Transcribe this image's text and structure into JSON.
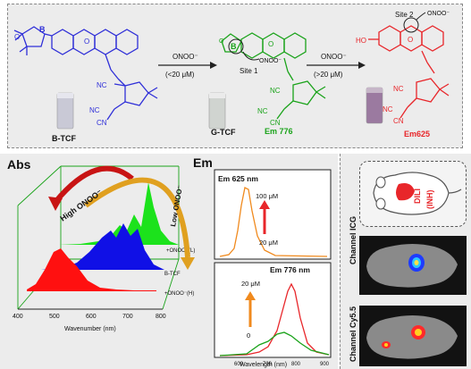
{
  "scheme": {
    "reagent": "ONOO⁻",
    "step1_condition": "(<20 μM)",
    "step2_condition": "(>20 μM)",
    "site1": "Site 1",
    "site2": "Site 2",
    "site2_reagent": "ONOO⁻",
    "site1_reagent": "ONOO⁻",
    "compound1": "B-TCF",
    "compound2": "G-TCF",
    "compound2_em": "Em 776",
    "compound3": "Em625",
    "atoms": {
      "B": "B",
      "O": "O",
      "HO": "HO",
      "NC": "NC",
      "CN": "CN"
    },
    "colors": {
      "blue": "#2f2fd8",
      "green": "#1aa31a",
      "red": "#e8262a",
      "orange": "#f08a1e"
    }
  },
  "abs_panel": {
    "title": "Abs",
    "arrow_high": "High ONOO⁻",
    "arrow_low": "Low ONOO⁻",
    "legend": [
      "+ONOO⁻(L)",
      "B-TCF",
      "+ONOO⁻(H)"
    ],
    "xlabel": "Wavenumber (nm)",
    "ticks": [
      "400",
      "500",
      "600",
      "700",
      "800"
    ]
  },
  "em_panel": {
    "title": "Em",
    "top_title": "Em 625 nm",
    "top_high": "100 μM",
    "top_low": "20 μM",
    "bottom_title": "Em 776 nm",
    "bottom_high": "20 μM",
    "bottom_low": "0",
    "xlabel": "Wavelength (nm)",
    "ticks": [
      "600",
      "700",
      "800",
      "900"
    ]
  },
  "imaging": {
    "mouse_label1": "DILI",
    "mouse_label2": "(INH)",
    "channel1": "Channel ICG",
    "channel2": "Channel Cy5.5"
  }
}
